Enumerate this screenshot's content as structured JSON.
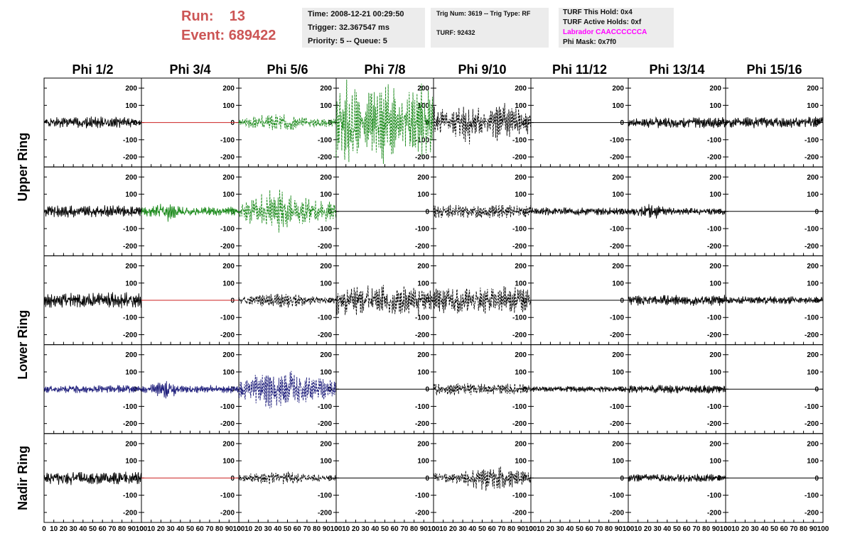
{
  "header": {
    "run_label": "Run:",
    "run_value": "13",
    "event_label": "Event:",
    "event_value": "689422",
    "time": "Time: 2008-12-21 00:29:50",
    "trigger": "Trigger: 32.367547 ms",
    "priority": "Priority: 5 -- Queue: 5",
    "trig_num": "Trig Num: 3619 -- Trig Type: RF",
    "turf": "TURF: 92432",
    "turf_hold": "TURF This Hold: 0x4",
    "turf_active": "TURF Active Holds: 0xf",
    "labrador": "Labrador CAACCCCCCA",
    "phi_mask": "Phi Mask: 0x7f0"
  },
  "colors": {
    "header_red": "#cc5555",
    "labrador_magenta": "#ff00ff",
    "trace_black": "#000000",
    "trace_green": "#1b8a1b",
    "trace_red": "#cc2222",
    "trace_navy": "#1c1c7a"
  },
  "chart_data": {
    "type": "line",
    "columns": [
      "Phi 1/2",
      "Phi 3/4",
      "Phi 5/6",
      "Phi 7/8",
      "Phi 9/10",
      "Phi 11/12",
      "Phi 13/14",
      "Phi 15/16"
    ],
    "ring_groups": [
      {
        "label": "Upper Ring",
        "rows": [
          0,
          1
        ]
      },
      {
        "label": "Lower Ring",
        "rows": [
          2,
          3
        ]
      },
      {
        "label": "Nadir Ring",
        "rows": [
          4
        ]
      }
    ],
    "xlim": [
      0,
      100
    ],
    "x_ticks": [
      "0",
      "10",
      "20",
      "30",
      "40",
      "50",
      "60",
      "70",
      "80",
      "90",
      "100"
    ],
    "ylim": [
      -250,
      250
    ],
    "y_ticks": [
      200,
      100,
      0,
      -100,
      -200
    ],
    "y_tick_labels": [
      "200",
      "100",
      "0",
      "-100",
      "-200"
    ],
    "panels": [
      [
        {
          "amp": 30,
          "color": "black",
          "dashed": false,
          "env": "flat",
          "seed": 1
        },
        {
          "amp": 0,
          "color": "red",
          "dashed": false,
          "env": "flat",
          "seed": 2
        },
        {
          "amp": 45,
          "color": "green",
          "dashed": true,
          "env": "burst",
          "seed": 3
        },
        {
          "amp": 240,
          "color": "green",
          "dashed": true,
          "env": "beat",
          "seed": 4
        },
        {
          "amp": 110,
          "color": "black",
          "dashed": true,
          "env": "beat",
          "seed": 5
        },
        {
          "amp": 0,
          "color": "black",
          "dashed": false,
          "env": "flat",
          "seed": 6
        },
        {
          "amp": 28,
          "color": "black",
          "dashed": false,
          "env": "flat",
          "seed": 7
        },
        {
          "amp": 30,
          "color": "black",
          "dashed": false,
          "env": "flat",
          "seed": 8
        }
      ],
      [
        {
          "amp": 30,
          "color": "black",
          "dashed": false,
          "env": "flat",
          "seed": 9
        },
        {
          "amp": 40,
          "color": "green",
          "dashed": false,
          "env": "early",
          "seed": 10
        },
        {
          "amp": 110,
          "color": "green",
          "dashed": true,
          "env": "burst",
          "seed": 11
        },
        {
          "amp": 0,
          "color": "black",
          "dashed": false,
          "env": "flat",
          "seed": 12
        },
        {
          "amp": 35,
          "color": "black",
          "dashed": true,
          "env": "flat",
          "seed": 13
        },
        {
          "amp": 20,
          "color": "black",
          "dashed": false,
          "env": "flat",
          "seed": 14
        },
        {
          "amp": 30,
          "color": "black",
          "dashed": false,
          "env": "early",
          "seed": 15
        },
        {
          "amp": 0,
          "color": "black",
          "dashed": false,
          "env": "flat",
          "seed": 16
        }
      ],
      [
        {
          "amp": 40,
          "color": "black",
          "dashed": false,
          "env": "flat",
          "seed": 17
        },
        {
          "amp": 0,
          "color": "red",
          "dashed": false,
          "env": "flat",
          "seed": 18
        },
        {
          "amp": 40,
          "color": "black",
          "dashed": true,
          "env": "burst",
          "seed": 19
        },
        {
          "amp": 75,
          "color": "black",
          "dashed": true,
          "env": "flat",
          "seed": 20
        },
        {
          "amp": 70,
          "color": "black",
          "dashed": true,
          "env": "flat",
          "seed": 21
        },
        {
          "amp": 0,
          "color": "black",
          "dashed": false,
          "env": "flat",
          "seed": 22
        },
        {
          "amp": 28,
          "color": "black",
          "dashed": false,
          "env": "flat",
          "seed": 23
        },
        {
          "amp": 20,
          "color": "black",
          "dashed": false,
          "env": "flat",
          "seed": 24
        }
      ],
      [
        {
          "amp": 20,
          "color": "navy",
          "dashed": false,
          "env": "flat",
          "seed": 25
        },
        {
          "amp": 35,
          "color": "navy",
          "dashed": false,
          "env": "early",
          "seed": 26
        },
        {
          "amp": 110,
          "color": "navy",
          "dashed": true,
          "env": "burst",
          "seed": 27
        },
        {
          "amp": 0,
          "color": "black",
          "dashed": false,
          "env": "flat",
          "seed": 28
        },
        {
          "amp": 30,
          "color": "black",
          "dashed": true,
          "env": "flat",
          "seed": 29
        },
        {
          "amp": 15,
          "color": "black",
          "dashed": false,
          "env": "flat",
          "seed": 30
        },
        {
          "amp": 22,
          "color": "black",
          "dashed": false,
          "env": "flat",
          "seed": 31
        },
        {
          "amp": 0,
          "color": "black",
          "dashed": false,
          "env": "flat",
          "seed": 32
        }
      ],
      [
        {
          "amp": 35,
          "color": "black",
          "dashed": false,
          "env": "flat",
          "seed": 33
        },
        {
          "amp": 0,
          "color": "red",
          "dashed": false,
          "env": "flat",
          "seed": 34
        },
        {
          "amp": 35,
          "color": "black",
          "dashed": true,
          "env": "burst",
          "seed": 35
        },
        {
          "amp": 0,
          "color": "black",
          "dashed": false,
          "env": "flat",
          "seed": 36
        },
        {
          "amp": 70,
          "color": "black",
          "dashed": true,
          "env": "late",
          "seed": 37
        },
        {
          "amp": 0,
          "color": "black",
          "dashed": false,
          "env": "flat",
          "seed": 38
        },
        {
          "amp": 20,
          "color": "black",
          "dashed": false,
          "env": "flat",
          "seed": 39
        },
        {
          "amp": 0,
          "color": "black",
          "dashed": false,
          "env": "flat",
          "seed": 40
        }
      ]
    ]
  }
}
